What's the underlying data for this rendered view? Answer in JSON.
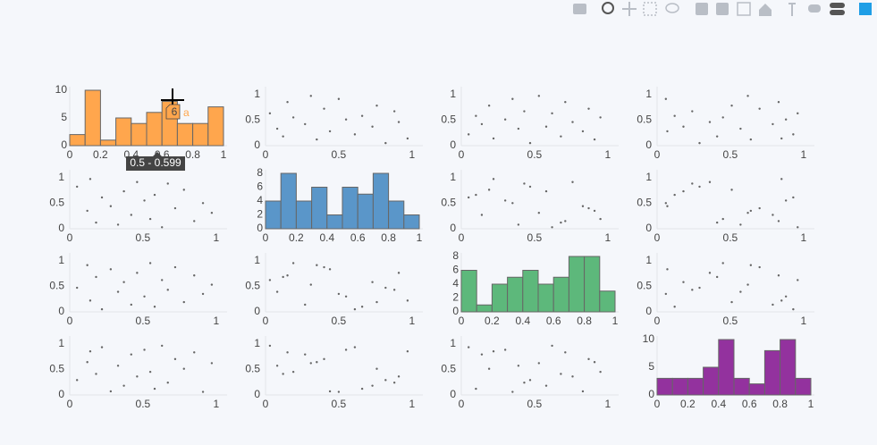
{
  "chart_data": {
    "type": "splom",
    "dimensions": [
      {
        "values": [
          0.05,
          0.12,
          0.14,
          0.18,
          0.22,
          0.28,
          0.33,
          0.37,
          0.42,
          0.46,
          0.51,
          0.55,
          0.58,
          0.63,
          0.67,
          0.72,
          0.78,
          0.85,
          0.91,
          0.97
        ]
      },
      {
        "values": [
          0.82,
          0.35,
          0.97,
          0.12,
          0.61,
          0.44,
          0.08,
          0.73,
          0.27,
          0.91,
          0.55,
          0.19,
          0.66,
          0.03,
          0.88,
          0.4,
          0.76,
          0.15,
          0.5,
          0.31
        ]
      },
      {
        "values": [
          0.47,
          0.91,
          0.22,
          0.68,
          0.05,
          0.83,
          0.39,
          0.58,
          0.14,
          0.76,
          0.3,
          0.95,
          0.1,
          0.62,
          0.43,
          0.87,
          0.19,
          0.71,
          0.35,
          0.53
        ]
      },
      {
        "values": [
          0.29,
          0.64,
          0.85,
          0.41,
          0.93,
          0.07,
          0.57,
          0.18,
          0.79,
          0.36,
          0.88,
          0.45,
          0.12,
          0.96,
          0.24,
          0.7,
          0.51,
          0.83,
          0.06,
          0.62
        ]
      }
    ],
    "point_color": "#666666",
    "xlim": [
      0,
      1.05
    ],
    "ylim": [
      0,
      1.08
    ],
    "xticks": [
      0,
      0.5,
      1
    ],
    "yticks": [
      0,
      0.5,
      1
    ],
    "bins": [
      0,
      0.1,
      0.2,
      0.3,
      0.4,
      0.5,
      0.6,
      0.7,
      0.8,
      0.9,
      1
    ],
    "hist_xlim": [
      0,
      1
    ],
    "hist_xticks": [
      0,
      0.2,
      0.4,
      0.6,
      0.8,
      1
    ],
    "histograms": [
      {
        "name": "a",
        "color": "#ffa64d",
        "counts": [
          2,
          10,
          1,
          5,
          4,
          6,
          8,
          4,
          4,
          7
        ],
        "ylim": [
          0,
          10
        ],
        "yticks": [
          0,
          5,
          10
        ]
      },
      {
        "color": "#5a96c9",
        "counts": [
          4,
          8,
          4,
          6,
          2,
          6,
          5,
          8,
          4,
          2
        ],
        "ylim": [
          0,
          8
        ],
        "yticks": [
          0,
          2,
          4,
          6,
          8
        ]
      },
      {
        "color": "#5db87b",
        "counts": [
          6,
          1,
          4,
          5,
          6,
          4,
          5,
          8,
          8,
          3
        ],
        "ylim": [
          0,
          8
        ],
        "yticks": [
          0,
          2,
          4,
          6,
          8
        ]
      },
      {
        "color": "#93329e",
        "counts": [
          3,
          3,
          3,
          5,
          10,
          3,
          2,
          8,
          10,
          3
        ],
        "ylim": [
          0,
          10
        ],
        "yticks": [
          0,
          5,
          10
        ]
      }
    ],
    "hover": {
      "x_label": "0.5 - 0.599"
    }
  }
}
